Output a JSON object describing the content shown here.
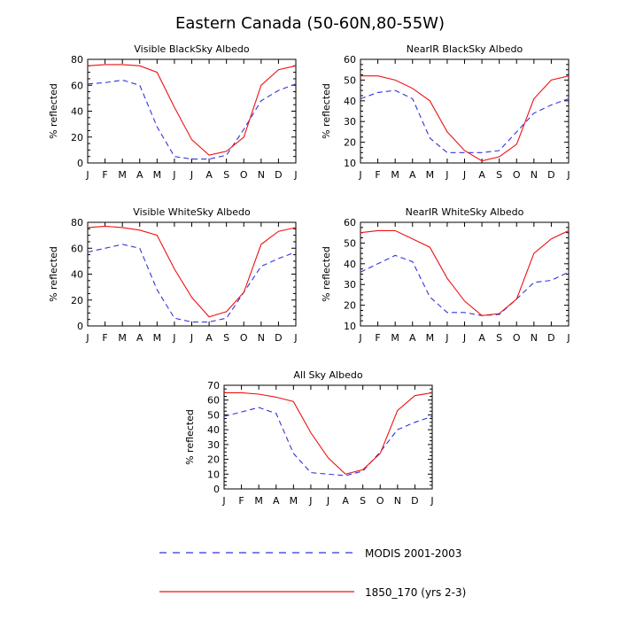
{
  "title": "Eastern Canada (50-60N,80-55W)",
  "colors": {
    "modis": "#3333dd",
    "model": "#ee1111",
    "axis": "#000000"
  },
  "legend": {
    "modis_label": "MODIS 2001-2003",
    "model_label": "1850_170 (yrs 2-3)"
  },
  "chart_data": [
    {
      "type": "line",
      "title": "Visible BlackSky Albedo",
      "ylabel": "% reflected",
      "categories": [
        "J",
        "F",
        "M",
        "A",
        "M",
        "J",
        "J",
        "A",
        "S",
        "O",
        "N",
        "D",
        "J"
      ],
      "ylim": [
        0,
        80
      ],
      "yticks": [
        0,
        20,
        40,
        60,
        80
      ],
      "series": [
        {
          "name": "MODIS 2001-2003",
          "style": "dashed",
          "values": [
            61,
            62,
            64,
            60,
            28,
            5,
            3,
            3,
            6,
            26,
            48,
            56,
            61
          ]
        },
        {
          "name": "1850_170 (yrs 2-3)",
          "style": "solid",
          "values": [
            75,
            76,
            76,
            75,
            70,
            43,
            18,
            6,
            9,
            20,
            60,
            72,
            75
          ]
        }
      ]
    },
    {
      "type": "line",
      "title": "NearIR BlackSky Albedo",
      "ylabel": "% reflected",
      "categories": [
        "J",
        "F",
        "M",
        "A",
        "M",
        "J",
        "J",
        "A",
        "S",
        "O",
        "N",
        "D",
        "J"
      ],
      "ylim": [
        10,
        60
      ],
      "yticks": [
        10,
        20,
        30,
        40,
        50,
        60
      ],
      "series": [
        {
          "name": "MODIS 2001-2003",
          "style": "dashed",
          "values": [
            41,
            44,
            45,
            41,
            22,
            15,
            15,
            15,
            16,
            25,
            34,
            38,
            41
          ]
        },
        {
          "name": "1850_170 (yrs 2-3)",
          "style": "solid",
          "values": [
            52,
            52,
            50,
            46,
            40,
            25,
            16,
            11,
            13,
            19,
            41,
            50,
            52
          ]
        }
      ]
    },
    {
      "type": "line",
      "title": "Visible WhiteSky Albedo",
      "ylabel": "% reflected",
      "categories": [
        "J",
        "F",
        "M",
        "A",
        "M",
        "J",
        "J",
        "A",
        "S",
        "O",
        "N",
        "D",
        "J"
      ],
      "ylim": [
        0,
        80
      ],
      "yticks": [
        0,
        20,
        40,
        60,
        80
      ],
      "series": [
        {
          "name": "MODIS 2001-2003",
          "style": "dashed",
          "values": [
            57,
            60,
            63,
            60,
            28,
            6,
            3,
            3,
            6,
            26,
            46,
            52,
            57
          ]
        },
        {
          "name": "1850_170 (yrs 2-3)",
          "style": "solid",
          "values": [
            76,
            77,
            76,
            74,
            70,
            44,
            22,
            7,
            11,
            26,
            63,
            73,
            76
          ]
        }
      ]
    },
    {
      "type": "line",
      "title": "NearIR WhiteSky Albedo",
      "ylabel": "% reflected",
      "categories": [
        "J",
        "F",
        "M",
        "A",
        "M",
        "J",
        "J",
        "A",
        "S",
        "O",
        "N",
        "D",
        "J"
      ],
      "ylim": [
        10,
        60
      ],
      "yticks": [
        10,
        20,
        30,
        40,
        50,
        60
      ],
      "series": [
        {
          "name": "MODIS 2001-2003",
          "style": "dashed",
          "values": [
            36,
            40,
            44,
            41,
            24,
            16.5,
            16.5,
            15,
            15.5,
            23,
            31,
            32,
            36
          ]
        },
        {
          "name": "1850_170 (yrs 2-3)",
          "style": "solid",
          "values": [
            55,
            56,
            56,
            52,
            48,
            33,
            22,
            15,
            16,
            23,
            45,
            52,
            56
          ]
        }
      ]
    },
    {
      "type": "line",
      "title": "All Sky Albedo",
      "ylabel": "% reflected",
      "categories": [
        "J",
        "F",
        "M",
        "A",
        "M",
        "J",
        "J",
        "A",
        "S",
        "O",
        "N",
        "D",
        "J"
      ],
      "ylim": [
        0,
        70
      ],
      "yticks": [
        0,
        10,
        20,
        30,
        40,
        50,
        60,
        70
      ],
      "series": [
        {
          "name": "MODIS 2001-2003",
          "style": "dashed",
          "values": [
            49,
            52,
            55,
            51,
            24,
            11,
            10,
            9,
            12,
            25,
            40,
            45,
            49
          ]
        },
        {
          "name": "1850_170 (yrs 2-3)",
          "style": "solid",
          "values": [
            65,
            65,
            64,
            62,
            59,
            38,
            21,
            10,
            13,
            24,
            53,
            63,
            65
          ]
        }
      ]
    }
  ]
}
